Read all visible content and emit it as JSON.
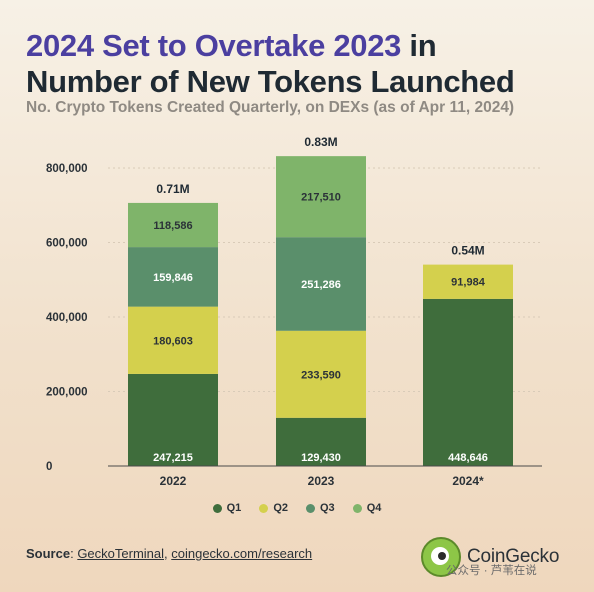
{
  "header": {
    "title_highlight": "2024 Set to Overtake 2023",
    "title_rest_1": " in",
    "title_rest_2": "Number of New Tokens Launched",
    "subtitle": "No. Crypto Tokens Created Quarterly, on DEXs (as of Apr 11, 2024)"
  },
  "chart_data": {
    "type": "bar",
    "stacked": true,
    "categories": [
      "2022",
      "2023",
      "2024*"
    ],
    "series": [
      {
        "name": "Q1",
        "values": [
          247215,
          129430,
          448646
        ],
        "color": "#3f6d3c",
        "label_color": "#ffffff"
      },
      {
        "name": "Q2",
        "values": [
          180603,
          233590,
          91984
        ],
        "color": "#d4d04d",
        "label_color": "#2b3238"
      },
      {
        "name": "Q3",
        "values": [
          159846,
          251286,
          null
        ],
        "color": "#5a8f6b",
        "label_color": "#ffffff"
      },
      {
        "name": "Q4",
        "values": [
          118586,
          217510,
          null
        ],
        "color": "#7fb46a",
        "label_color": "#2b3238"
      }
    ],
    "series_labels": [
      [
        "247,215",
        "129,430",
        "448,646"
      ],
      [
        "180,603",
        "233,590",
        "91,984"
      ],
      [
        "159,846",
        "251,286",
        ""
      ],
      [
        "118,586",
        "217,510",
        ""
      ]
    ],
    "totals": [
      "0.71M",
      "0.83M",
      "0.54M"
    ],
    "ylim": [
      0,
      800000
    ],
    "yticks": [
      0,
      200000,
      400000,
      600000,
      800000
    ],
    "ytick_labels": [
      "0",
      "200,000",
      "400,000",
      "600,000",
      "800,000"
    ],
    "grid": true,
    "legend_position": "bottom-center"
  },
  "footer": {
    "source_label": "Source",
    "source_sep": ": ",
    "source_link_1": "GeckoTerminal",
    "source_comma": ", ",
    "source_link_2": "coingecko.com/research",
    "brand": "CoinGecko",
    "watermark": "公众号 · 芦苇在说"
  }
}
